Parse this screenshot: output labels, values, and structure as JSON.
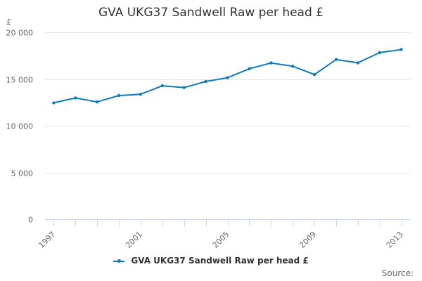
{
  "chart_data": {
    "type": "line",
    "title": "GVA UKG37 Sandwell Raw per head £",
    "ylabel": "£",
    "xlabel": "",
    "ylim": [
      0,
      20000
    ],
    "yticks": [
      0,
      5000,
      10000,
      15000,
      20000
    ],
    "ytick_labels": [
      "0",
      "5 000",
      "10 000",
      "15 000",
      "20 000"
    ],
    "xticks": [
      1997,
      2001,
      2005,
      2009,
      2013
    ],
    "xtick_labels": [
      "1997",
      "2001",
      "2005",
      "2009",
      "2013"
    ],
    "grid": "horizontal",
    "legend_position": "bottom",
    "series": [
      {
        "name": "GVA UKG37 Sandwell Raw per head £",
        "color": "#0e7bbd",
        "x": [
          1997,
          1998,
          1999,
          2000,
          2001,
          2002,
          2003,
          2004,
          2005,
          2006,
          2007,
          2008,
          2009,
          2010,
          2011,
          2012,
          2013
        ],
        "values": [
          12450,
          12980,
          12550,
          13230,
          13370,
          14280,
          14080,
          14740,
          15140,
          16100,
          16720,
          16370,
          15480,
          17090,
          16740,
          17830,
          18160
        ]
      }
    ]
  },
  "credits": "Source:"
}
